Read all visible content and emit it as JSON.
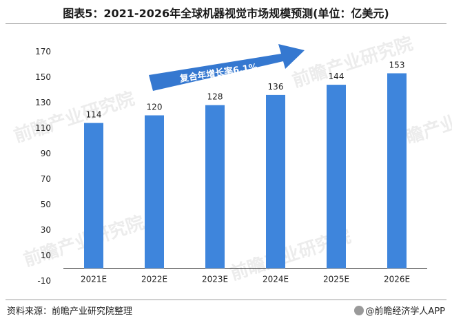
{
  "title": "图表5：2021-2026年全球机器视觉市场规模预测(单位：亿美元)",
  "source": "资料来源：前瞻产业研究院整理",
  "credit": "@前瞻经济学人APP",
  "annotation": "复合年增长率6.1%",
  "watermark": "前瞻产业研究院",
  "colors": {
    "bar": "#3e85dc",
    "arrow": "#3578d0",
    "axis": "#222222",
    "grid": "none"
  },
  "chart_data": {
    "type": "bar",
    "categories": [
      "2021E",
      "2022E",
      "2023E",
      "2024E",
      "2025E",
      "2026E"
    ],
    "values": [
      114,
      120,
      128,
      136,
      144,
      153
    ],
    "ylim": [
      -10,
      170
    ],
    "yticks": [
      -10,
      10,
      30,
      50,
      70,
      90,
      110,
      130,
      150,
      170
    ],
    "title": "图表5：2021-2026年全球机器视觉市场规模预测(单位：亿美元)",
    "xlabel": "",
    "ylabel": "",
    "grid": false,
    "data_labels": true
  }
}
